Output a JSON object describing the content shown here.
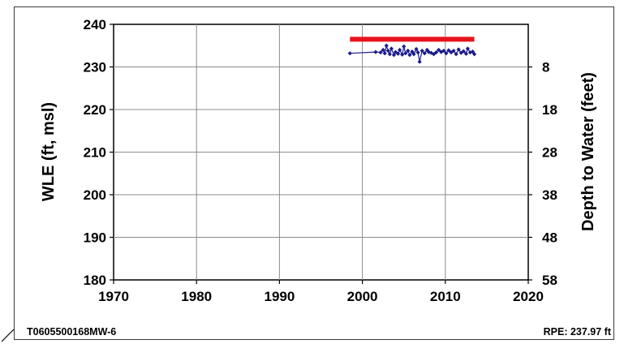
{
  "chart_data": {
    "type": "scatter",
    "title": "",
    "xlabel": "",
    "ylabel": "WLE (ft, msl)",
    "y2label": "Depth to Water (feet)",
    "xlim": [
      1970,
      2020
    ],
    "ylim": [
      180,
      240
    ],
    "x_ticks": [
      1970,
      1980,
      1990,
      2000,
      2010,
      2020
    ],
    "y_ticks": [
      180,
      190,
      200,
      210,
      220,
      230,
      240
    ],
    "y2_ticks": [
      58,
      48,
      38,
      28,
      18,
      8
    ],
    "grid": true,
    "legend": "none",
    "reference_line": {
      "value": 236.5,
      "x_start": 1998.5,
      "x_end": 2013.5,
      "color": "#e8141c"
    },
    "series": [
      {
        "color": "#1a1a8c",
        "x": [
          1998.5,
          2001.6,
          2002.2,
          2002.5,
          2002.7,
          2002.9,
          2003.1,
          2003.3,
          2003.5,
          2003.8,
          2004.0,
          2004.3,
          2004.5,
          2004.8,
          2005.0,
          2005.2,
          2005.5,
          2005.7,
          2006.0,
          2006.2,
          2006.5,
          2006.7,
          2006.9,
          2007.2,
          2007.5,
          2007.8,
          2008.0,
          2008.3,
          2008.6,
          2008.9,
          2009.2,
          2009.5,
          2009.8,
          2010.1,
          2010.4,
          2010.7,
          2011.0,
          2011.3,
          2011.6,
          2011.9,
          2012.2,
          2012.5,
          2012.7,
          2013.0,
          2013.3,
          2013.5
        ],
        "y": [
          233.2,
          233.5,
          233.4,
          234.0,
          233.2,
          235.0,
          233.8,
          233.0,
          234.3,
          232.8,
          233.5,
          233.1,
          234.0,
          232.9,
          234.8,
          233.2,
          233.8,
          232.8,
          233.6,
          233.0,
          234.2,
          233.4,
          231.2,
          233.8,
          233.2,
          234.0,
          233.5,
          233.3,
          233.0,
          233.4,
          234.0,
          233.5,
          233.8,
          233.2,
          233.9,
          233.4,
          233.8,
          233.0,
          234.1,
          233.3,
          233.7,
          233.1,
          234.3,
          233.4,
          233.6,
          233.0
        ]
      }
    ]
  },
  "footer": {
    "well_id": "T0605500168MW-6",
    "rpe": "RPE: 237.97 ft"
  },
  "colors": {
    "grid": "#8c8c8c",
    "axis": "#000000"
  }
}
